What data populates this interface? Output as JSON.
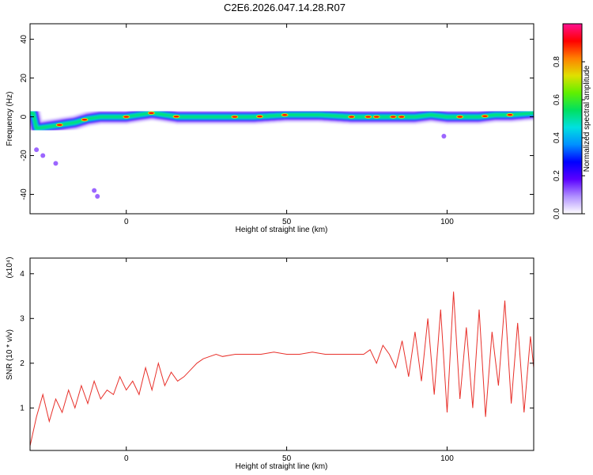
{
  "figure": {
    "title": "C2E6.2026.047.14.28.R07"
  },
  "colors": {
    "trace": "#e8302a",
    "colormap": [
      "#ffffff",
      "#b090ff",
      "#5a00ff",
      "#0000ff",
      "#0090ff",
      "#00e0e0",
      "#00e060",
      "#60f000",
      "#e0e000",
      "#ff8000",
      "#ff0000",
      "#ff1090"
    ]
  },
  "chart_data": [
    {
      "type": "heatmap",
      "title": "C2E6.2026.047.14.28.R07",
      "xlabel": "Height of straight line (km)",
      "ylabel": "Frequency (Hz)",
      "xlim": [
        -30,
        127
      ],
      "ylim": [
        -50,
        48
      ],
      "x_ticks": [
        0,
        50,
        100
      ],
      "y_ticks": [
        -40,
        -20,
        0,
        20,
        40
      ],
      "x_tick_labels": [
        "0",
        "50",
        "100"
      ],
      "y_tick_labels": [
        "-40",
        "-20",
        "0",
        "20",
        "40"
      ],
      "colorbar": {
        "label": "Normalized spectral amplitude",
        "range": [
          0,
          1
        ],
        "ticks": [
          0.0,
          0.2,
          0.4,
          0.6,
          0.8
        ],
        "tick_labels": [
          "0.0",
          "0.2",
          "0.4",
          "0.6",
          "0.8"
        ]
      },
      "ridge": {
        "x": [
          -28,
          -24,
          -20,
          -16,
          -12,
          -8,
          -4,
          0,
          4,
          8,
          12,
          16,
          20,
          30,
          40,
          50,
          60,
          70,
          80,
          90,
          95,
          100,
          105,
          110,
          115,
          120,
          127
        ],
        "freq": [
          -6,
          -5,
          -4,
          -3,
          -1,
          0,
          0,
          0,
          1,
          2,
          1,
          0,
          0,
          0,
          0,
          1,
          1,
          0,
          0,
          0,
          1,
          0,
          0,
          0,
          1,
          1,
          2
        ]
      },
      "outliers": [
        [
          -28,
          -17
        ],
        [
          -26,
          -20
        ],
        [
          -22,
          -24
        ],
        [
          -10,
          -38
        ],
        [
          -9,
          -41
        ],
        [
          99,
          -10
        ]
      ]
    },
    {
      "type": "line",
      "xlabel": "Height of straight line (km)",
      "ylabel": "SNR (10 * v/v)",
      "y_multiplier_label": "(x10⁴)",
      "xlim": [
        -30,
        127
      ],
      "ylim": [
        0.05,
        4.35
      ],
      "x_ticks": [
        0,
        50,
        100
      ],
      "y_ticks": [
        1,
        2,
        3,
        4
      ],
      "x_tick_labels": [
        "0",
        "50",
        "100"
      ],
      "y_tick_labels": [
        "1",
        "2",
        "3",
        "4"
      ],
      "series": [
        {
          "x": [
            -30,
            -28,
            -26,
            -24,
            -22,
            -20,
            -18,
            -16,
            -14,
            -12,
            -10,
            -8,
            -6,
            -4,
            -2,
            0,
            2,
            4,
            6,
            8,
            10,
            12,
            14,
            16,
            18,
            20,
            22,
            24,
            26,
            28,
            30,
            34,
            38,
            42,
            46,
            50,
            54,
            58,
            62,
            66,
            70,
            74,
            76,
            78,
            80,
            82,
            84,
            86,
            88,
            90,
            92,
            94,
            96,
            98,
            100,
            102,
            104,
            106,
            108,
            110,
            112,
            114,
            116,
            118,
            120,
            122,
            124,
            126,
            127
          ],
          "values": [
            0.15,
            0.8,
            1.3,
            0.7,
            1.2,
            0.9,
            1.4,
            1.0,
            1.5,
            1.1,
            1.6,
            1.2,
            1.4,
            1.3,
            1.7,
            1.4,
            1.6,
            1.3,
            1.9,
            1.4,
            2.0,
            1.5,
            1.8,
            1.6,
            1.7,
            1.85,
            2.0,
            2.1,
            2.15,
            2.2,
            2.15,
            2.2,
            2.2,
            2.2,
            2.25,
            2.2,
            2.2,
            2.25,
            2.2,
            2.2,
            2.2,
            2.2,
            2.3,
            2.0,
            2.4,
            2.2,
            1.9,
            2.5,
            1.7,
            2.7,
            1.6,
            3.0,
            1.3,
            3.2,
            0.9,
            3.6,
            1.2,
            2.8,
            1.0,
            3.2,
            0.8,
            2.7,
            1.5,
            3.4,
            1.1,
            2.9,
            0.9,
            2.6,
            1.9
          ]
        }
      ]
    }
  ]
}
